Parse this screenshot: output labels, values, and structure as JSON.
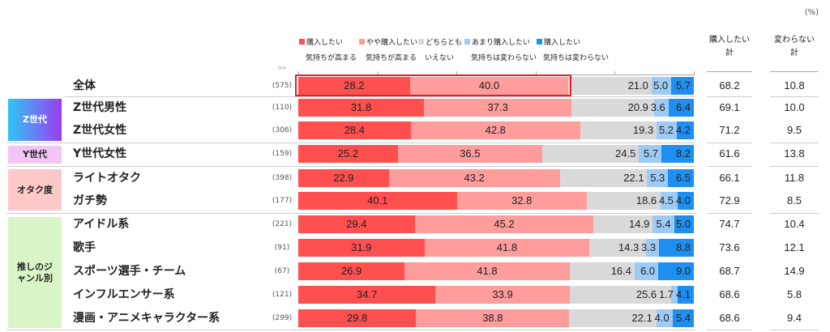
{
  "unit": "(%)",
  "n_label": "n=",
  "colors": {
    "c1": "#ff4f4f",
    "c2": "#ff9c9c",
    "c3": "#d9d9d9",
    "c4": "#9dcbf5",
    "c5": "#1e8ff0"
  },
  "chart_data": {
    "type": "bar",
    "orientation": "horizontal-stacked-100",
    "legend": [
      {
        "line1": "購入したい",
        "line2": "気持ちが高まる"
      },
      {
        "line1": "やや購入したい",
        "line2": "気持ちが高まる"
      },
      {
        "line1": "どちらとも",
        "line2": "いえない"
      },
      {
        "line1": "あまり購入したい",
        "line2": "気持ちは変わらない"
      },
      {
        "line1": "購入したい",
        "line2": "気持ちは変わらない"
      }
    ],
    "total_headers": [
      {
        "line1": "購入したい",
        "line2": "計"
      },
      {
        "line1": "変わらない",
        "line2": "計"
      }
    ],
    "groups": [
      {
        "label": "Z世代",
        "rows": [
          1,
          2
        ]
      },
      {
        "label": "Y世代",
        "rows": [
          3
        ]
      },
      {
        "label": "オタク度",
        "rows": [
          4,
          5
        ]
      },
      {
        "label": "推しのジャンル別",
        "rows": [
          6,
          7,
          8,
          9,
          10
        ]
      }
    ],
    "rows": [
      {
        "label": "全体",
        "n": "(575)",
        "values": [
          28.2,
          40.0,
          21.0,
          5.0,
          5.7
        ],
        "total_buy": "68.2",
        "total_nochange": "10.8"
      },
      {
        "label": "Z世代男性",
        "n": "(110)",
        "values": [
          31.8,
          37.3,
          20.9,
          3.6,
          6.4
        ],
        "total_buy": "69.1",
        "total_nochange": "10.0"
      },
      {
        "label": "Z世代女性",
        "n": "(306)",
        "values": [
          28.4,
          42.8,
          19.3,
          5.2,
          4.2
        ],
        "total_buy": "71.2",
        "total_nochange": "9.5"
      },
      {
        "label": "Y世代女性",
        "n": "(159)",
        "values": [
          25.2,
          36.5,
          24.5,
          5.7,
          8.2
        ],
        "total_buy": "61.6",
        "total_nochange": "13.8"
      },
      {
        "label": "ライトオタク",
        "n": "(398)",
        "values": [
          22.9,
          43.2,
          22.1,
          5.3,
          6.5
        ],
        "total_buy": "66.1",
        "total_nochange": "11.8"
      },
      {
        "label": "ガチ勢",
        "n": "(177)",
        "values": [
          40.1,
          32.8,
          18.6,
          4.5,
          4.0
        ],
        "total_buy": "72.9",
        "total_nochange": "8.5"
      },
      {
        "label": "アイドル系",
        "n": "(221)",
        "values": [
          29.4,
          45.2,
          14.9,
          5.4,
          5.0
        ],
        "total_buy": "74.7",
        "total_nochange": "10.4"
      },
      {
        "label": "歌手",
        "n": "(91)",
        "values": [
          31.9,
          41.8,
          14.3,
          3.3,
          8.8
        ],
        "total_buy": "73.6",
        "total_nochange": "12.1"
      },
      {
        "label": "スポーツ選手・チーム",
        "n": "(67)",
        "values": [
          26.9,
          41.8,
          16.4,
          6.0,
          9.0
        ],
        "total_buy": "68.7",
        "total_nochange": "14.9"
      },
      {
        "label": "インフルエンサー系",
        "n": "(121)",
        "values": [
          34.7,
          33.9,
          25.6,
          1.7,
          4.1
        ],
        "total_buy": "68.6",
        "total_nochange": "5.8"
      },
      {
        "label": "漫画・アニメキャラクター系",
        "n": "(299)",
        "values": [
          29.8,
          38.8,
          22.1,
          4.0,
          5.4
        ],
        "total_buy": "68.6",
        "total_nochange": "9.4"
      }
    ]
  }
}
